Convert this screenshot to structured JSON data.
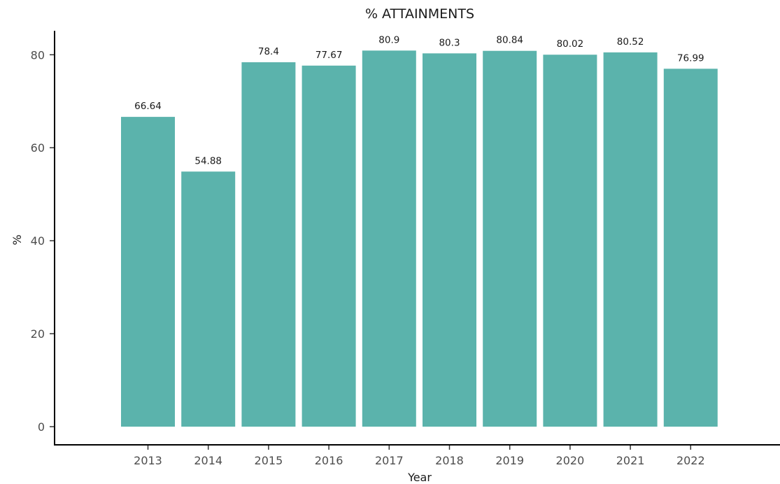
{
  "chart_data": {
    "type": "bar",
    "title": "% ATTAINMENTS",
    "xlabel": "Year",
    "ylabel": "%",
    "categories": [
      "2013",
      "2014",
      "2015",
      "2016",
      "2017",
      "2018",
      "2019",
      "2020",
      "2021",
      "2022"
    ],
    "values": [
      66.64,
      54.88,
      78.4,
      77.67,
      80.9,
      80.3,
      80.84,
      80.02,
      80.52,
      76.99
    ],
    "data_labels": [
      "66.64",
      "54.88",
      "78.4",
      "77.67",
      "80.9",
      "80.3",
      "80.84",
      "80.02",
      "80.52",
      "76.99"
    ],
    "y_ticks": [
      0,
      20,
      40,
      60,
      80
    ],
    "ylim": [
      0,
      85
    ],
    "grid": false,
    "legend": "none",
    "bar_color": "#5BB3AC"
  }
}
